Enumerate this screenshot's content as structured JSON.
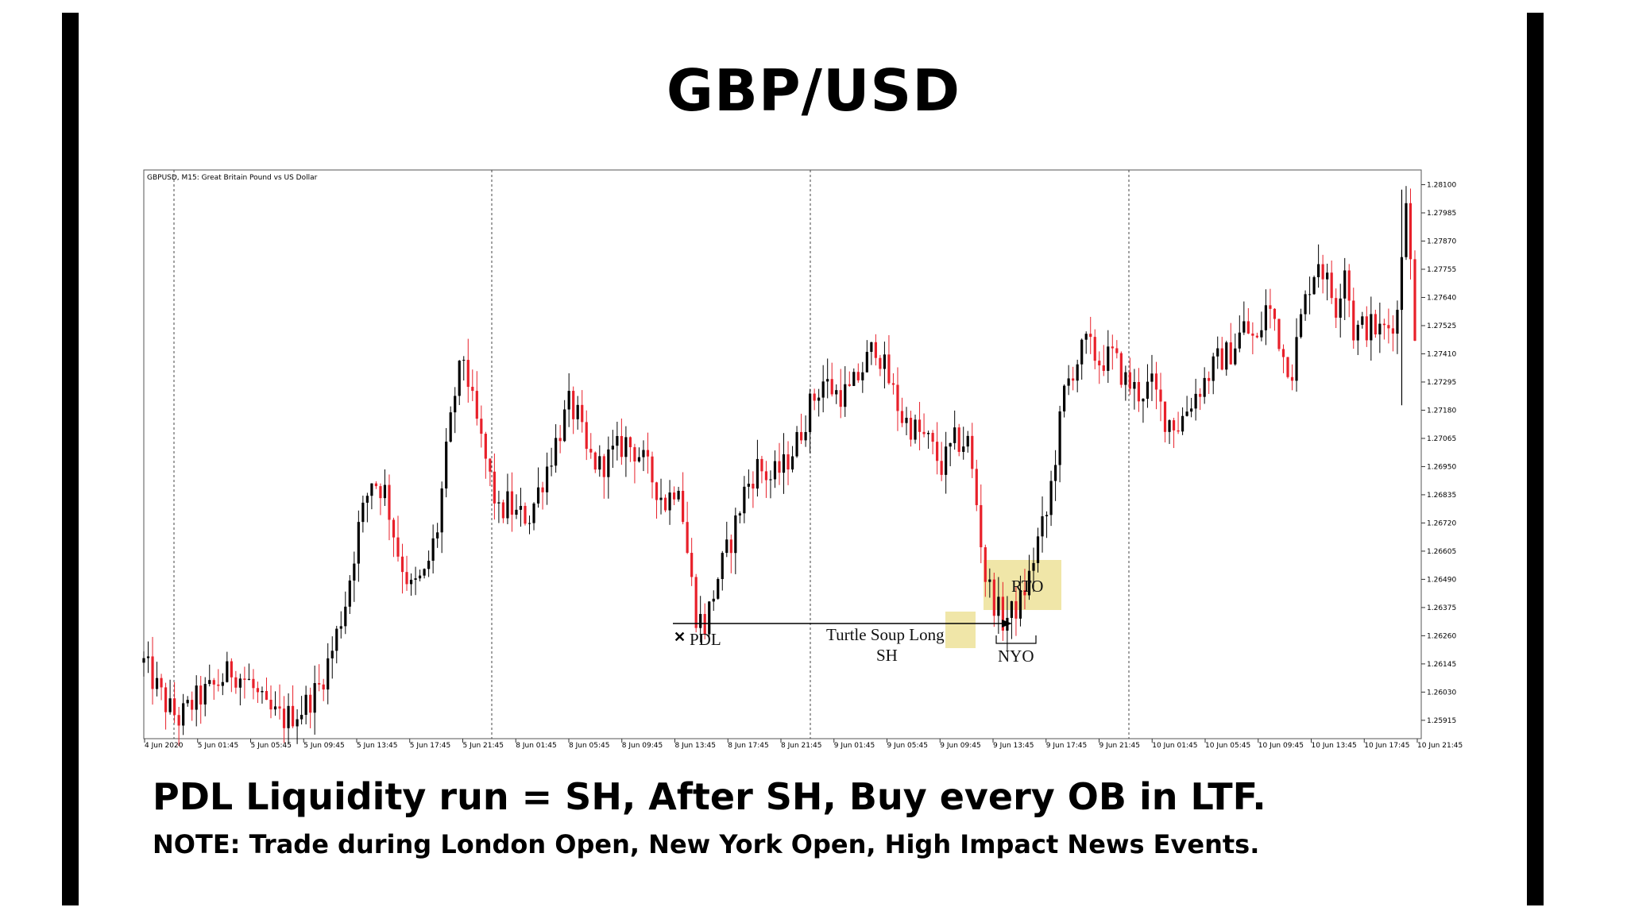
{
  "title": "GBP/USD",
  "headline": "PDL Liquidity run = SH, After SH, Buy every OB in LTF.",
  "note": "NOTE: Trade during London Open, New York Open, High Impact News Events.",
  "chart_data": {
    "type": "candlestick",
    "symbol_label": "GBPUSD, M15:  Great Britain Pound vs US Dollar",
    "colors": {
      "bull": "#000000",
      "bear": "#e8202a",
      "highlight": "#f0e6a8",
      "grid": "#444444"
    },
    "ylim": [
      1.2584,
      1.2816
    ],
    "y_ticks": [
      "1.28100",
      "1.27985",
      "1.27870",
      "1.27755",
      "1.27640",
      "1.27525",
      "1.27410",
      "1.27295",
      "1.27180",
      "1.27065",
      "1.26950",
      "1.26835",
      "1.26720",
      "1.26605",
      "1.26490",
      "1.26375",
      "1.26260",
      "1.26145",
      "1.26030",
      "1.25915"
    ],
    "x_ticks": [
      "4 Jun 2020",
      "5 Jun 01:45",
      "5 Jun 05:45",
      "5 Jun 09:45",
      "5 Jun 13:45",
      "5 Jun 17:45",
      "5 Jun 21:45",
      "8 Jun 01:45",
      "8 Jun 05:45",
      "8 Jun 09:45",
      "8 Jun 13:45",
      "8 Jun 17:45",
      "8 Jun 21:45",
      "9 Jun 01:45",
      "9 Jun 05:45",
      "9 Jun 09:45",
      "9 Jun 13:45",
      "9 Jun 17:45",
      "9 Jun 21:45",
      "10 Jun 01:45",
      "10 Jun 05:45",
      "10 Jun 09:45",
      "10 Jun 13:45",
      "10 Jun 17:45",
      "10 Jun 21:45"
    ],
    "day_separators": [
      "5 Jun",
      "8 Jun",
      "9 Jun",
      "10 Jun"
    ],
    "close_path": [
      [
        0,
        1.2615
      ],
      [
        5,
        1.2598
      ],
      [
        8,
        1.2592
      ],
      [
        12,
        1.26
      ],
      [
        16,
        1.2605
      ],
      [
        20,
        1.2612
      ],
      [
        24,
        1.2607
      ],
      [
        28,
        1.2595
      ],
      [
        32,
        1.2592
      ],
      [
        36,
        1.2596
      ],
      [
        40,
        1.2605
      ],
      [
        43,
        1.262
      ],
      [
        46,
        1.264
      ],
      [
        49,
        1.267
      ],
      [
        52,
        1.269
      ],
      [
        55,
        1.2685
      ],
      [
        58,
        1.266
      ],
      [
        61,
        1.2645
      ],
      [
        64,
        1.265
      ],
      [
        67,
        1.267
      ],
      [
        69,
        1.27
      ],
      [
        71,
        1.2725
      ],
      [
        73,
        1.274
      ],
      [
        75,
        1.272
      ],
      [
        77,
        1.2705
      ],
      [
        79,
        1.269
      ],
      [
        81,
        1.2675
      ],
      [
        83,
        1.268
      ],
      [
        85,
        1.2675
      ],
      [
        88,
        1.2675
      ],
      [
        91,
        1.269
      ],
      [
        94,
        1.2705
      ],
      [
        97,
        1.272
      ],
      [
        99,
        1.2715
      ],
      [
        101,
        1.27
      ],
      [
        104,
        1.2695
      ],
      [
        107,
        1.27
      ],
      [
        110,
        1.2705
      ],
      [
        113,
        1.27
      ],
      [
        116,
        1.269
      ],
      [
        119,
        1.268
      ],
      [
        122,
        1.269
      ],
      [
        124,
        1.266
      ],
      [
        126,
        1.2635
      ],
      [
        128,
        1.263
      ],
      [
        131,
        1.265
      ],
      [
        134,
        1.2665
      ],
      [
        137,
        1.2685
      ],
      [
        140,
        1.2695
      ],
      [
        143,
        1.269
      ],
      [
        146,
        1.2695
      ],
      [
        149,
        1.2705
      ],
      [
        152,
        1.272
      ],
      [
        155,
        1.273
      ],
      [
        158,
        1.2725
      ],
      [
        161,
        1.2725
      ],
      [
        164,
        1.2735
      ],
      [
        167,
        1.2745
      ],
      [
        170,
        1.273
      ],
      [
        173,
        1.2715
      ],
      [
        176,
        1.271
      ],
      [
        179,
        1.2705
      ],
      [
        182,
        1.2695
      ],
      [
        185,
        1.2705
      ],
      [
        188,
        1.2705
      ],
      [
        190,
        1.268
      ],
      [
        192,
        1.265
      ],
      [
        194,
        1.264
      ],
      [
        196,
        1.2632
      ],
      [
        198,
        1.2635
      ],
      [
        200,
        1.264
      ],
      [
        202,
        1.265
      ],
      [
        204,
        1.2665
      ],
      [
        206,
        1.2675
      ],
      [
        208,
        1.27
      ],
      [
        210,
        1.2725
      ],
      [
        212,
        1.2735
      ],
      [
        215,
        1.2745
      ],
      [
        218,
        1.2738
      ],
      [
        221,
        1.274
      ],
      [
        224,
        1.273
      ],
      [
        227,
        1.2725
      ],
      [
        230,
        1.2728
      ],
      [
        233,
        1.2715
      ],
      [
        236,
        1.2712
      ],
      [
        239,
        1.2722
      ],
      [
        242,
        1.273
      ],
      [
        245,
        1.2738
      ],
      [
        248,
        1.2742
      ],
      [
        251,
        1.2752
      ],
      [
        254,
        1.2745
      ],
      [
        256,
        1.276
      ],
      [
        258,
        1.2755
      ],
      [
        260,
        1.274
      ],
      [
        262,
        1.2735
      ],
      [
        264,
        1.2755
      ],
      [
        266,
        1.277
      ],
      [
        268,
        1.278
      ],
      [
        270,
        1.277
      ],
      [
        272,
        1.276
      ],
      [
        274,
        1.2778
      ],
      [
        276,
        1.275
      ],
      [
        278,
        1.2752
      ],
      [
        280,
        1.2752
      ],
      [
        282,
        1.275
      ],
      [
        284,
        1.2752
      ],
      [
        286,
        1.2758
      ],
      [
        288,
        1.2808
      ],
      [
        290,
        1.2745
      ]
    ],
    "bars_total": 290,
    "annotations": [
      {
        "label": "PDL",
        "marker": "x",
        "kind": "low"
      },
      {
        "label": "Turtle Soup Long",
        "kind": "arrow-text"
      },
      {
        "label": "SH",
        "kind": "text"
      },
      {
        "label": "RTO",
        "kind": "box"
      },
      {
        "label": "NYO",
        "kind": "bracket"
      }
    ]
  }
}
